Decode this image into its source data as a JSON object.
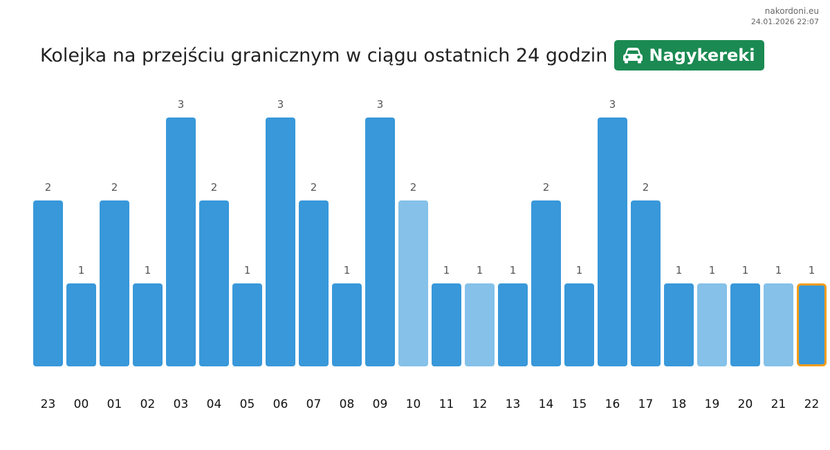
{
  "meta": {
    "site": "nakordoni.eu",
    "timestamp": "24.01.2026 22:07"
  },
  "header": {
    "title": "Kolejka na przejściu granicznym w ciągu ostatnich 24 godzin",
    "badge_label": "Nagykereki",
    "badge_icon": "car-icon"
  },
  "colors": {
    "bar": "#3898da",
    "bar_light": "#85c1e9",
    "highlight_outline": "#f39c12",
    "badge_bg": "#1b8a52"
  },
  "chart_data": {
    "type": "bar",
    "title": "Kolejka na przejściu granicznym w ciągu ostatnich 24 godzin",
    "xlabel": "",
    "ylabel": "",
    "categories": [
      "23",
      "00",
      "01",
      "02",
      "03",
      "04",
      "05",
      "06",
      "07",
      "08",
      "09",
      "10",
      "11",
      "12",
      "13",
      "14",
      "15",
      "16",
      "17",
      "18",
      "19",
      "20",
      "21",
      "22"
    ],
    "values": [
      2,
      1,
      2,
      1,
      3,
      2,
      1,
      3,
      2,
      1,
      3,
      2,
      1,
      1,
      1,
      2,
      1,
      3,
      2,
      1,
      1,
      1,
      1,
      1
    ],
    "light": [
      false,
      false,
      false,
      false,
      false,
      false,
      false,
      false,
      false,
      false,
      false,
      true,
      false,
      true,
      false,
      false,
      false,
      false,
      false,
      false,
      true,
      false,
      true,
      false
    ],
    "highlighted_category": "22",
    "ylim": [
      0,
      3
    ],
    "grid": false,
    "legend": "none"
  }
}
